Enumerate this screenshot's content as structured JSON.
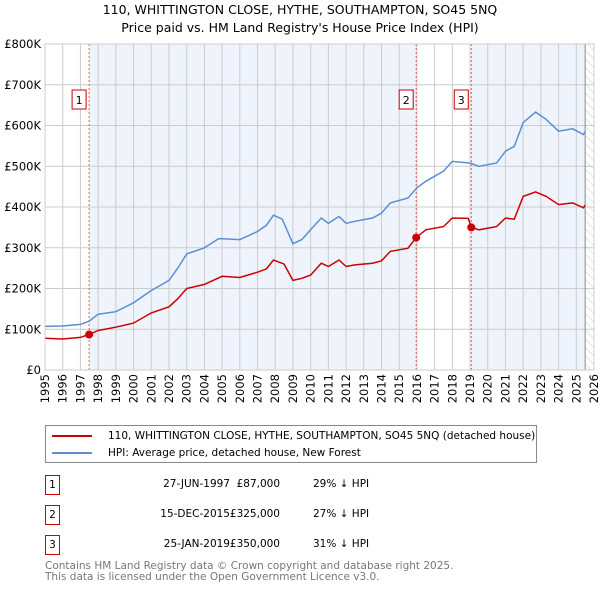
{
  "title_line1": "110, WHITTINGTON CLOSE, HYTHE, SOUTHAMPTON, SO45 5NQ",
  "title_line2": "Price paid vs. HM Land Registry's House Price Index (HPI)",
  "chart_data": {
    "type": "line",
    "xlim": [
      1995,
      2026
    ],
    "ylim": [
      0,
      800000
    ],
    "yticks": [
      {
        "v": 0,
        "label": "£0"
      },
      {
        "v": 100000,
        "label": "£100K"
      },
      {
        "v": 200000,
        "label": "£200K"
      },
      {
        "v": 300000,
        "label": "£300K"
      },
      {
        "v": 400000,
        "label": "£400K"
      },
      {
        "v": 500000,
        "label": "£500K"
      },
      {
        "v": 600000,
        "label": "£600K"
      },
      {
        "v": 700000,
        "label": "£700K"
      },
      {
        "v": 800000,
        "label": "£800K"
      }
    ],
    "xticks": [
      "1995",
      "1996",
      "1997",
      "1998",
      "1999",
      "2000",
      "2001",
      "2002",
      "2003",
      "2004",
      "2005",
      "2006",
      "2007",
      "2008",
      "2009",
      "2010",
      "2011",
      "2012",
      "2013",
      "2014",
      "2015",
      "2016",
      "2017",
      "2018",
      "2019",
      "2020",
      "2021",
      "2022",
      "2023",
      "2024",
      "2025",
      "2026"
    ],
    "grid": true,
    "series": [
      {
        "name": "110, WHITTINGTON CLOSE, HYTHE, SOUTHAMPTON, SO45 5NQ (detached house)",
        "color": "#cc0000",
        "x": [
          1995,
          1996,
          1997,
          1997.49,
          1998,
          1999,
          2000,
          2001,
          2002,
          2002.5,
          2003,
          2004,
          2005,
          2006,
          2007,
          2007.5,
          2007.9,
          2008.5,
          2009,
          2009.5,
          2010,
          2010.6,
          2011,
          2011.6,
          2012,
          2012.5,
          2013.5,
          2014,
          2014.5,
          2015.5,
          2015.96,
          2016.5,
          2017.5,
          2018,
          2018.9,
          2019.07,
          2019.5,
          2020.5,
          2021,
          2021.5,
          2022,
          2022.7,
          2023.3,
          2024,
          2024.8,
          2025.4,
          2025.5
        ],
        "y": [
          78000,
          76000,
          80000,
          87000,
          97000,
          105000,
          115000,
          140000,
          155000,
          175000,
          200000,
          210000,
          230000,
          227000,
          240000,
          248000,
          270000,
          260000,
          220000,
          225000,
          233000,
          262000,
          254000,
          270000,
          254000,
          258000,
          262000,
          268000,
          291000,
          299000,
          325000,
          344000,
          352000,
          373000,
          372000,
          350000,
          344000,
          352000,
          373000,
          370000,
          426000,
          437000,
          426000,
          406000,
          410000,
          398000,
          405000
        ]
      },
      {
        "name": "HPI: Average price, detached house, New Forest",
        "color": "#5b8fd4",
        "x": [
          1995,
          1996,
          1997,
          1997.5,
          1998,
          1999,
          2000,
          2001,
          2002,
          2002.5,
          2003,
          2004,
          2004.8,
          2005,
          2006,
          2007,
          2007.5,
          2007.9,
          2008.4,
          2009,
          2009.5,
          2010,
          2010.6,
          2011,
          2011.6,
          2012,
          2012.5,
          2013.5,
          2014,
          2014.5,
          2015.5,
          2016,
          2016.5,
          2017.5,
          2018,
          2018.5,
          2019,
          2019.5,
          2020.5,
          2021,
          2021.5,
          2022,
          2022.7,
          2023.3,
          2024,
          2024.8,
          2025.4,
          2025.5
        ],
        "y": [
          107000,
          108000,
          112000,
          120000,
          137000,
          143000,
          165000,
          195000,
          220000,
          250000,
          285000,
          300000,
          322000,
          322000,
          320000,
          340000,
          355000,
          380000,
          370000,
          310000,
          320000,
          344000,
          373000,
          360000,
          377000,
          360000,
          365000,
          373000,
          385000,
          410000,
          422000,
          447000,
          463000,
          488000,
          512000,
          510000,
          508000,
          500000,
          508000,
          537000,
          549000,
          607000,
          633000,
          615000,
          586000,
          592000,
          578000,
          585000
        ]
      }
    ],
    "sales": [
      {
        "id": "1",
        "x": 1997.49,
        "y": 87000,
        "date": "27-JUN-1997",
        "price": "£87,000",
        "hpi": "29% ↓ HPI"
      },
      {
        "id": "2",
        "x": 2015.96,
        "y": 325000,
        "date": "15-DEC-2015",
        "price": "£325,000",
        "hpi": "27% ↓ HPI"
      },
      {
        "id": "3",
        "x": 2019.07,
        "y": 350000,
        "date": "25-JAN-2019",
        "price": "£350,000",
        "hpi": "31% ↓ HPI"
      }
    ],
    "legend_position": "below"
  },
  "legend": {
    "property": "110, WHITTINGTON CLOSE, HYTHE, SOUTHAMPTON, SO45 5NQ (detached house)",
    "hpi": "HPI: Average price, detached house, New Forest"
  },
  "footer_line1": "Contains HM Land Registry data © Crown copyright and database right 2025.",
  "footer_line2": "This data is licensed under the Open Government Licence v3.0."
}
